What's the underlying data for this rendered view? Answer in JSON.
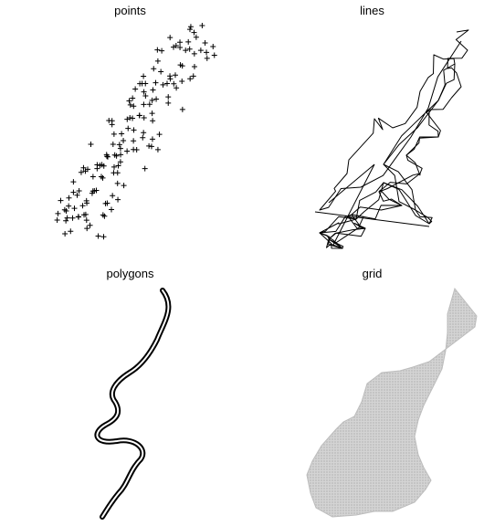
{
  "panels": {
    "points": {
      "title": "points"
    },
    "lines": {
      "title": "lines"
    },
    "polygons": {
      "title": "polygons"
    },
    "grid": {
      "title": "grid"
    }
  },
  "colors": {
    "background": "#ffffff",
    "ink": "#000000",
    "river_fill": "#ffffff",
    "grid_fill": "#cccccc"
  },
  "marker": "plus-sign",
  "point_count": 155
}
